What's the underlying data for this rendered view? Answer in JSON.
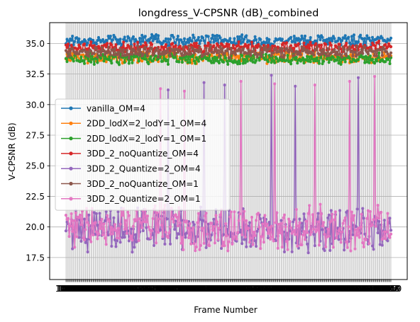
{
  "chart_data": {
    "type": "line",
    "title": "longdress_V-CPSNR (dB)_combined",
    "xlabel": "Frame Number",
    "ylabel": "V-CPSNR (dB)",
    "x_start": 1051,
    "x_end": 1350,
    "xlim": [
      1036,
      1365
    ],
    "ylim": [
      15.7,
      36.7
    ],
    "yticks": [
      17.5,
      20.0,
      22.5,
      25.0,
      27.5,
      30.0,
      32.5,
      35.0
    ],
    "ytick_labels": [
      "17.5",
      "20.0",
      "22.5",
      "25.0",
      "27.5",
      "30.0",
      "32.5",
      "35.0"
    ],
    "grid": true,
    "legend_position": "center-left",
    "markers": true,
    "series": [
      {
        "name": "vanilla_OM=4",
        "color": "#1f77b4",
        "mean": 35.25,
        "amp": 0.35
      },
      {
        "name": "2DD_lodX=2_lodY=1_OM=4",
        "color": "#ff7f0e",
        "mean": 33.85,
        "amp": 0.35
      },
      {
        "name": "2DD_lodX=2_lodY=1_OM=1",
        "color": "#2ca02c",
        "mean": 33.75,
        "amp": 0.35
      },
      {
        "name": "3DD_2_noQuantize_OM=4",
        "color": "#d62728",
        "mean": 34.7,
        "amp": 0.35
      },
      {
        "name": "3DD_2_Quantize=2_OM=4",
        "color": "#9467bd",
        "mean": 19.8,
        "amp": 1.4,
        "spikes": [
          [
            1145,
            31.2
          ],
          [
            1178,
            31.8
          ],
          [
            1197,
            31.6
          ],
          [
            1240,
            32.4
          ],
          [
            1262,
            31.5
          ],
          [
            1320,
            32.2
          ]
        ]
      },
      {
        "name": "3DD_2_noQuantize_OM=1",
        "color": "#8c564b",
        "mean": 34.3,
        "amp": 0.35
      },
      {
        "name": "3DD_2_Quantize=2_OM=1",
        "color": "#e377c2",
        "mean": 19.9,
        "amp": 1.4,
        "spikes": [
          [
            1138,
            31.3
          ],
          [
            1160,
            31.1
          ],
          [
            1212,
            31.9
          ],
          [
            1243,
            31.7
          ],
          [
            1280,
            31.6
          ],
          [
            1312,
            31.9
          ],
          [
            1335,
            32.3
          ]
        ]
      }
    ]
  }
}
